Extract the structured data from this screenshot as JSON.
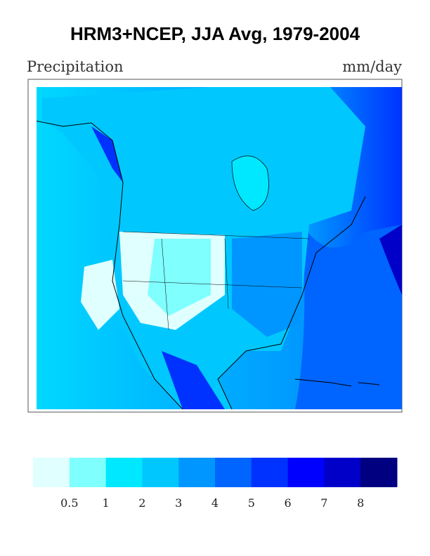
{
  "title": "HRM3+NCEP, JJA Avg, 1979-2004",
  "left_label": "Precipitation",
  "right_label": "mm/day",
  "colorbar": {
    "colors": [
      "#e0ffff",
      "#80ffff",
      "#00e8ff",
      "#00c8ff",
      "#0096ff",
      "#0064ff",
      "#0032ff",
      "#0000ff",
      "#0000c8",
      "#000080"
    ],
    "ticks": [
      0.5,
      1,
      2,
      3,
      4,
      5,
      6,
      7,
      8
    ]
  }
}
